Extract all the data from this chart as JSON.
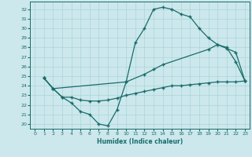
{
  "bg_color": "#cce8ec",
  "line_color": "#1a6b6b",
  "grid_color": "#aad4d8",
  "xlabel": "Humidex (Indice chaleur)",
  "xlim": [
    -0.5,
    23.5
  ],
  "ylim": [
    19.5,
    32.8
  ],
  "xticks": [
    0,
    1,
    2,
    3,
    4,
    5,
    6,
    7,
    8,
    9,
    10,
    11,
    12,
    13,
    14,
    15,
    16,
    17,
    18,
    19,
    20,
    21,
    22,
    23
  ],
  "yticks": [
    20,
    21,
    22,
    23,
    24,
    25,
    26,
    27,
    28,
    29,
    30,
    31,
    32
  ],
  "curve1_x": [
    1,
    2,
    3,
    4,
    5,
    6,
    7,
    8,
    9,
    10,
    11,
    12,
    13,
    14,
    15,
    16,
    17,
    18,
    19,
    20,
    21,
    22,
    23
  ],
  "curve1_y": [
    24.8,
    23.7,
    22.8,
    22.2,
    21.3,
    21.0,
    20.0,
    19.8,
    21.5,
    24.4,
    28.5,
    30.0,
    32.0,
    32.2,
    32.0,
    31.5,
    31.2,
    30.0,
    29.0,
    28.3,
    28.0,
    26.5,
    24.5
  ],
  "curve2_x": [
    1,
    2,
    10,
    12,
    13,
    14,
    19,
    20,
    21,
    22,
    23
  ],
  "curve2_y": [
    24.8,
    23.7,
    24.4,
    25.2,
    25.7,
    26.2,
    27.8,
    28.3,
    27.9,
    27.5,
    24.5
  ],
  "curve3_x": [
    1,
    2,
    3,
    4,
    5,
    6,
    7,
    8,
    9,
    10,
    11,
    12,
    13,
    14,
    15,
    16,
    17,
    18,
    19,
    20,
    21,
    22,
    23
  ],
  "curve3_y": [
    24.8,
    23.7,
    22.8,
    22.8,
    22.5,
    22.4,
    22.4,
    22.5,
    22.7,
    23.0,
    23.2,
    23.4,
    23.6,
    23.8,
    24.0,
    24.0,
    24.1,
    24.2,
    24.3,
    24.4,
    24.4,
    24.4,
    24.5
  ]
}
